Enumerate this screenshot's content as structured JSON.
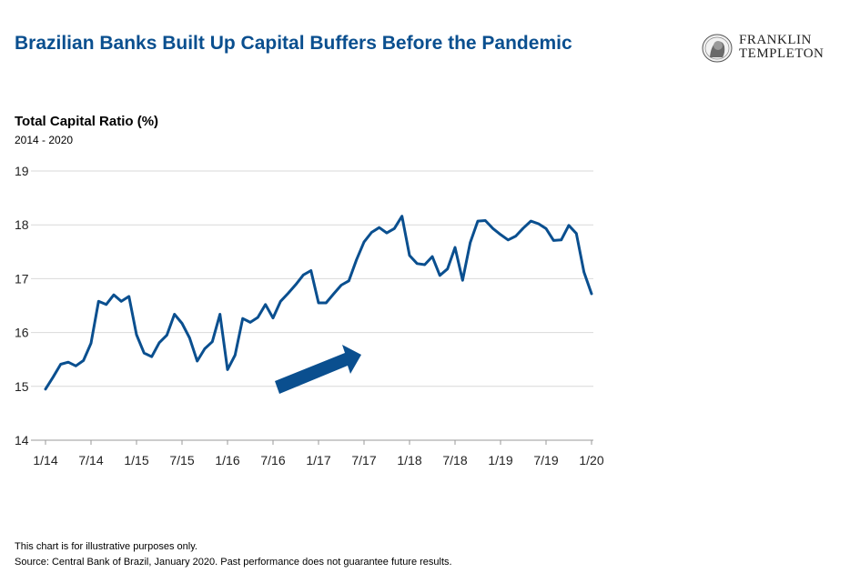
{
  "header": {
    "title": "Brazilian Banks Built Up Capital Buffers Before the Pandemic",
    "logo": {
      "line1": "FRANKLIN",
      "line2": "TEMPLETON"
    }
  },
  "chart_data": {
    "type": "line",
    "title": "Total Capital Ratio (%)",
    "subtitle": "2014 - 2020",
    "xlabel": "",
    "ylabel": "",
    "ylim": [
      14,
      19
    ],
    "y_ticks": [
      "14",
      "15",
      "16",
      "17",
      "18",
      "19"
    ],
    "x_ticks": [
      "1/14",
      "7/14",
      "1/15",
      "7/15",
      "1/16",
      "7/16",
      "1/17",
      "7/17",
      "1/18",
      "7/18",
      "1/19",
      "7/19",
      "1/20"
    ],
    "grid": true,
    "legend": "none",
    "line_color": "#0a4f8f",
    "annotation": "upward-arrow",
    "series": [
      {
        "name": "",
        "x": [
          "1/14",
          "2/14",
          "3/14",
          "4/14",
          "5/14",
          "6/14",
          "7/14",
          "8/14",
          "9/14",
          "10/14",
          "11/14",
          "12/14",
          "1/15",
          "2/15",
          "3/15",
          "4/15",
          "5/15",
          "6/15",
          "7/15",
          "8/15",
          "9/15",
          "10/15",
          "11/15",
          "12/15",
          "1/16",
          "2/16",
          "3/16",
          "4/16",
          "5/16",
          "6/16",
          "7/16",
          "8/16",
          "9/16",
          "10/16",
          "11/16",
          "12/16",
          "1/17",
          "2/17",
          "3/17",
          "4/17",
          "5/17",
          "6/17",
          "7/17",
          "8/17",
          "9/17",
          "10/17",
          "11/17",
          "12/17",
          "1/18",
          "2/18",
          "3/18",
          "4/18",
          "5/18",
          "6/18",
          "7/18",
          "8/18",
          "9/18",
          "10/18",
          "11/18",
          "12/18",
          "1/19",
          "2/19",
          "3/19",
          "4/19",
          "5/19",
          "6/19",
          "7/19",
          "8/19",
          "9/19",
          "10/19",
          "11/19",
          "12/19",
          "1/20"
        ],
        "values": [
          14.95,
          15.17,
          15.41,
          15.45,
          15.38,
          15.48,
          15.8,
          16.58,
          16.52,
          16.7,
          16.58,
          16.67,
          15.96,
          15.62,
          15.55,
          15.81,
          15.95,
          16.34,
          16.17,
          15.9,
          15.47,
          15.7,
          15.83,
          16.34,
          15.31,
          15.58,
          16.26,
          16.19,
          16.28,
          16.52,
          16.27,
          16.58,
          16.73,
          16.89,
          17.07,
          17.15,
          16.55,
          16.55,
          16.72,
          16.88,
          16.96,
          17.35,
          17.68,
          17.86,
          17.95,
          17.85,
          17.93,
          18.16,
          17.43,
          17.28,
          17.26,
          17.41,
          17.06,
          17.18,
          17.58,
          16.97,
          17.67,
          18.07,
          18.08,
          17.93,
          17.82,
          17.72,
          17.79,
          17.94,
          18.07,
          18.02,
          17.93,
          17.71,
          17.72,
          17.99,
          17.84,
          17.12,
          16.72
        ]
      }
    ]
  },
  "footer": {
    "note": "This chart is for illustrative purposes only.",
    "source": "Source: Central Bank of Brazil, January 2020. Past performance does not guarantee future results."
  }
}
